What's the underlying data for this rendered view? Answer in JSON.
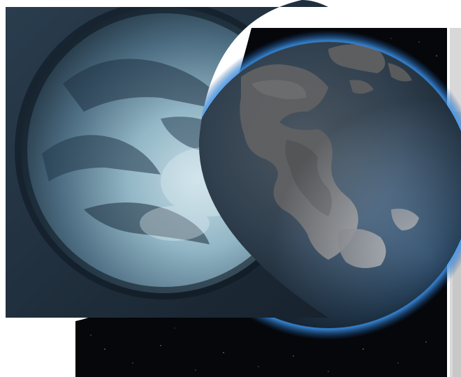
{
  "scene": {
    "background_color": "#ffffff",
    "space_color": "#05070b",
    "atmosphere_color": "#2e7fd6",
    "globe_front": {
      "name": "earth-globe",
      "ocean_color": "#6e8fb0",
      "land_color": "#d4d6da"
    },
    "globe_back": {
      "name": "frozen-cloudy-globe",
      "base_color": "#3f5f76",
      "highlight_color": "#a8c7d4",
      "panel_color": "#1f3142"
    }
  }
}
